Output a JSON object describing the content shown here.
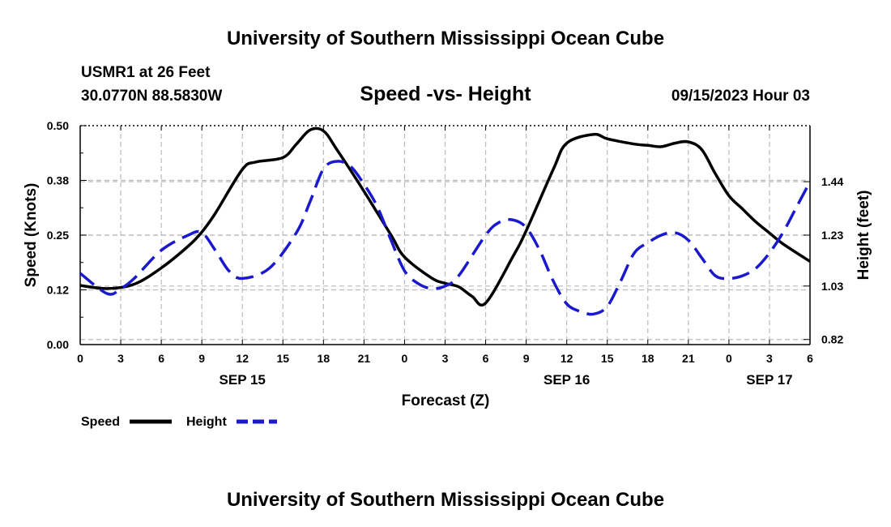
{
  "header": {
    "title": "University of Southern Mississippi Ocean Cube",
    "station": "USMR1 at 26 Feet",
    "coords": "30.0770N  88.5830W",
    "date_hour": "09/15/2023 Hour 03",
    "footer_title": "University of Southern Mississippi Ocean Cube"
  },
  "colors": {
    "speed": "#000000",
    "height": "#1a1acc",
    "grid": "#bbbbbb"
  },
  "chart_data": {
    "type": "line",
    "title": "Speed -vs- Height",
    "xlabel": "Forecast (Z)",
    "ylabel": "Speed (Knots)",
    "y2label": "Height (feet)",
    "x_tick_labels": [
      "0",
      "3",
      "6",
      "9",
      "12",
      "15",
      "18",
      "21",
      "0",
      "3",
      "6",
      "9",
      "12",
      "15",
      "18",
      "21",
      "0",
      "3",
      "6"
    ],
    "date_labels": [
      {
        "label": "SEP 15",
        "tick_index": 4
      },
      {
        "label": "SEP 16",
        "tick_index": 12
      },
      {
        "label": "SEP 17",
        "tick_index": 17
      }
    ],
    "xlim": [
      0,
      54
    ],
    "ylim": [
      0.0,
      0.5
    ],
    "y_ticks": [
      "0.00",
      "0.12",
      "0.25",
      "0.38",
      "0.50"
    ],
    "y2lim": [
      0.8,
      1.66
    ],
    "y2_ticks": [
      0.82,
      1.03,
      1.23,
      1.44
    ],
    "y2_tick_labels": [
      "0.82",
      "1.03",
      "1.23",
      "1.44"
    ],
    "series": [
      {
        "name": "Speed",
        "axis": "left",
        "dash": false,
        "x": [
          0,
          2,
          4,
          6,
          8,
          9,
          10,
          12,
          13,
          15,
          16,
          17,
          18,
          19,
          21,
          23,
          24,
          26,
          27,
          28,
          29,
          30,
          32,
          33,
          35,
          36,
          38,
          39,
          41,
          42,
          43,
          44,
          45,
          46,
          47,
          48,
          49,
          50,
          51,
          52,
          54
        ],
        "values": [
          0.135,
          0.128,
          0.138,
          0.175,
          0.225,
          0.257,
          0.3,
          0.4,
          0.417,
          0.427,
          0.458,
          0.49,
          0.488,
          0.445,
          0.35,
          0.25,
          0.2,
          0.152,
          0.14,
          0.132,
          0.11,
          0.095,
          0.2,
          0.26,
          0.4,
          0.46,
          0.48,
          0.47,
          0.458,
          0.455,
          0.452,
          0.46,
          0.463,
          0.445,
          0.39,
          0.34,
          0.31,
          0.28,
          0.255,
          0.23,
          0.19
        ]
      },
      {
        "name": "Height",
        "axis": "right",
        "dash": true,
        "x": [
          0,
          2,
          3,
          4,
          6,
          8,
          9,
          10,
          11,
          12,
          14,
          16,
          17,
          18,
          19,
          20,
          21,
          22,
          23,
          24,
          25,
          26,
          27,
          28,
          30,
          31,
          32,
          33,
          34,
          35,
          36,
          37,
          38,
          39,
          40,
          41,
          42,
          43,
          44,
          45,
          46,
          47,
          48,
          49,
          50,
          51,
          52,
          53,
          54
        ],
        "values": [
          1.08,
          1.0,
          1.02,
          1.06,
          1.17,
          1.23,
          1.24,
          1.17,
          1.09,
          1.06,
          1.1,
          1.24,
          1.36,
          1.49,
          1.52,
          1.5,
          1.43,
          1.34,
          1.21,
          1.09,
          1.04,
          1.02,
          1.03,
          1.07,
          1.23,
          1.28,
          1.29,
          1.26,
          1.17,
          1.05,
          0.96,
          0.93,
          0.92,
          0.95,
          1.05,
          1.16,
          1.2,
          1.23,
          1.24,
          1.21,
          1.14,
          1.07,
          1.06,
          1.07,
          1.1,
          1.16,
          1.24,
          1.34,
          1.44
        ]
      }
    ],
    "legend": {
      "placement": "bottom-left",
      "entries": [
        "Speed",
        "Height"
      ]
    }
  }
}
